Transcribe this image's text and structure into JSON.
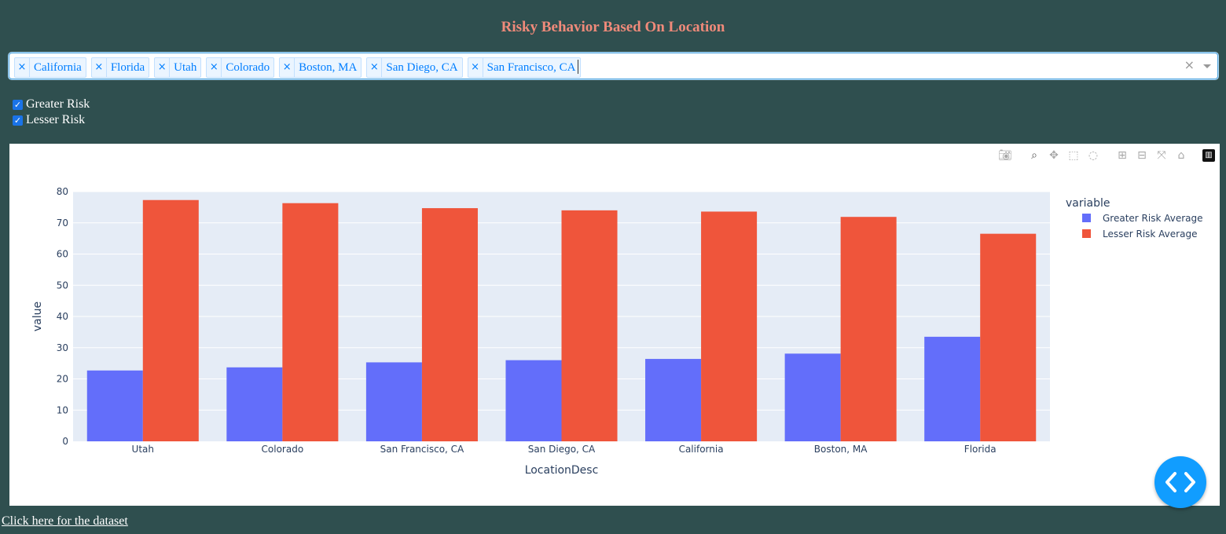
{
  "header": {
    "title": "Risky Behavior Based On Location"
  },
  "location_select": {
    "selected": [
      "California",
      "Florida",
      "Utah",
      "Colorado",
      "Boston, MA",
      "San Diego, CA",
      "San Francisco, CA"
    ],
    "remove_symbol": "×",
    "clear_symbol": "×"
  },
  "risk_checkboxes": [
    {
      "label": "Greater Risk",
      "checked": true
    },
    {
      "label": "Lesser Risk",
      "checked": true
    }
  ],
  "modebar": {
    "buttons": [
      "camera-icon",
      "zoom-icon",
      "pan-icon",
      "box-select-icon",
      "lasso-select-icon",
      "zoom-in-icon",
      "zoom-out-icon",
      "autoscale-icon",
      "reset-axes-icon",
      "plotly-logo-icon"
    ]
  },
  "chart_data": {
    "type": "bar",
    "xlabel": "LocationDesc",
    "ylabel": "value",
    "ylim": [
      0,
      80
    ],
    "yticks": [
      0,
      10,
      20,
      30,
      40,
      50,
      60,
      70,
      80
    ],
    "categories": [
      "Utah",
      "Colorado",
      "San Francisco, CA",
      "San Diego, CA",
      "California",
      "Boston, MA",
      "Florida"
    ],
    "legend_title": "variable",
    "legend_position": "top-right",
    "grid": true,
    "series": [
      {
        "name": "Greater Risk Average",
        "color": "#636efa",
        "values": [
          22.7,
          23.7,
          25.3,
          26.0,
          26.4,
          28.1,
          33.5
        ]
      },
      {
        "name": "Lesser Risk Average",
        "color": "#ef553b",
        "values": [
          77.3,
          76.3,
          74.7,
          74.0,
          73.6,
          71.9,
          66.5
        ]
      }
    ]
  },
  "footer": {
    "dataset_link": "Click here for the dataset"
  }
}
